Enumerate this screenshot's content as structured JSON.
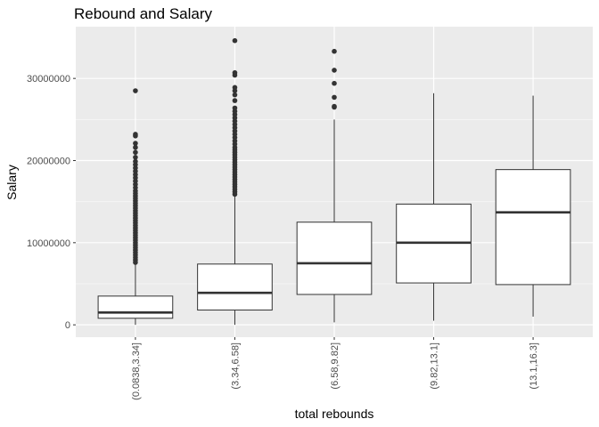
{
  "chart_data": {
    "type": "boxplot",
    "title": "Rebound and Salary",
    "xlabel": "total rebounds",
    "ylabel": "Salary",
    "categories": [
      "(0.0838,3.34]",
      "(3.34,6.58]",
      "(6.58,9.82]",
      "(9.82,13.1]",
      "(13.1,16.3]"
    ],
    "yticks": [
      0,
      10000000,
      20000000,
      30000000
    ],
    "ytick_labels": [
      "0",
      "10000000",
      "20000000",
      "30000000"
    ],
    "ylim": [
      -1500000,
      36300000
    ],
    "grid": true,
    "legend": "none",
    "boxes": [
      {
        "category": "(0.0838,3.34]",
        "whisker_low": 0,
        "q1": 800000,
        "median": 1500000,
        "q3": 3500000,
        "whisker_high": 7500000,
        "outliers": [
          7600000,
          7900000,
          8200000,
          8500000,
          8800000,
          9100000,
          9400000,
          9700000,
          10000000,
          10300000,
          10600000,
          10900000,
          11200000,
          11500000,
          11800000,
          12100000,
          12400000,
          12700000,
          13000000,
          13300000,
          13600000,
          13900000,
          14200000,
          14500000,
          14800000,
          15100000,
          15400000,
          15700000,
          16000000,
          16300000,
          16700000,
          17100000,
          17500000,
          17900000,
          18300000,
          18700000,
          19100000,
          19500000,
          19900000,
          20400000,
          21000000,
          21600000,
          22100000,
          23000000,
          23200000,
          28500000
        ]
      },
      {
        "category": "(3.34,6.58]",
        "whisker_low": 0,
        "q1": 1800000,
        "median": 3900000,
        "q3": 7400000,
        "whisker_high": 15700000,
        "outliers": [
          15900000,
          16200000,
          16500000,
          16800000,
          17100000,
          17400000,
          17700000,
          18000000,
          18300000,
          18600000,
          18900000,
          19200000,
          19500000,
          19800000,
          20100000,
          20400000,
          20700000,
          21000000,
          21300000,
          21600000,
          22000000,
          22400000,
          22800000,
          23200000,
          23600000,
          24000000,
          24400000,
          24800000,
          25200000,
          25600000,
          26000000,
          26400000,
          27300000,
          28000000,
          28500000,
          28900000,
          30400000,
          30700000,
          34600000
        ]
      },
      {
        "category": "(6.58,9.82]",
        "whisker_low": 300000,
        "q1": 3700000,
        "median": 7500000,
        "q3": 12500000,
        "whisker_high": 25000000,
        "outliers": [
          26500000,
          26600000,
          27700000,
          29400000,
          31000000,
          33300000
        ]
      },
      {
        "category": "(9.82,13.1]",
        "whisker_low": 500000,
        "q1": 5100000,
        "median": 10000000,
        "q3": 14700000,
        "whisker_high": 28200000,
        "outliers": []
      },
      {
        "category": "(13.1,16.3]",
        "whisker_low": 1000000,
        "q1": 4900000,
        "median": 13700000,
        "q3": 18900000,
        "whisker_high": 27900000,
        "outliers": []
      }
    ]
  },
  "colors": {
    "panel": "#ebebeb",
    "grid_major": "#ffffff",
    "grid_minor": "#f5f5f5",
    "box_fill": "#ffffff",
    "box_line": "#333333",
    "outlier": "#333333",
    "tick": "#333333"
  }
}
